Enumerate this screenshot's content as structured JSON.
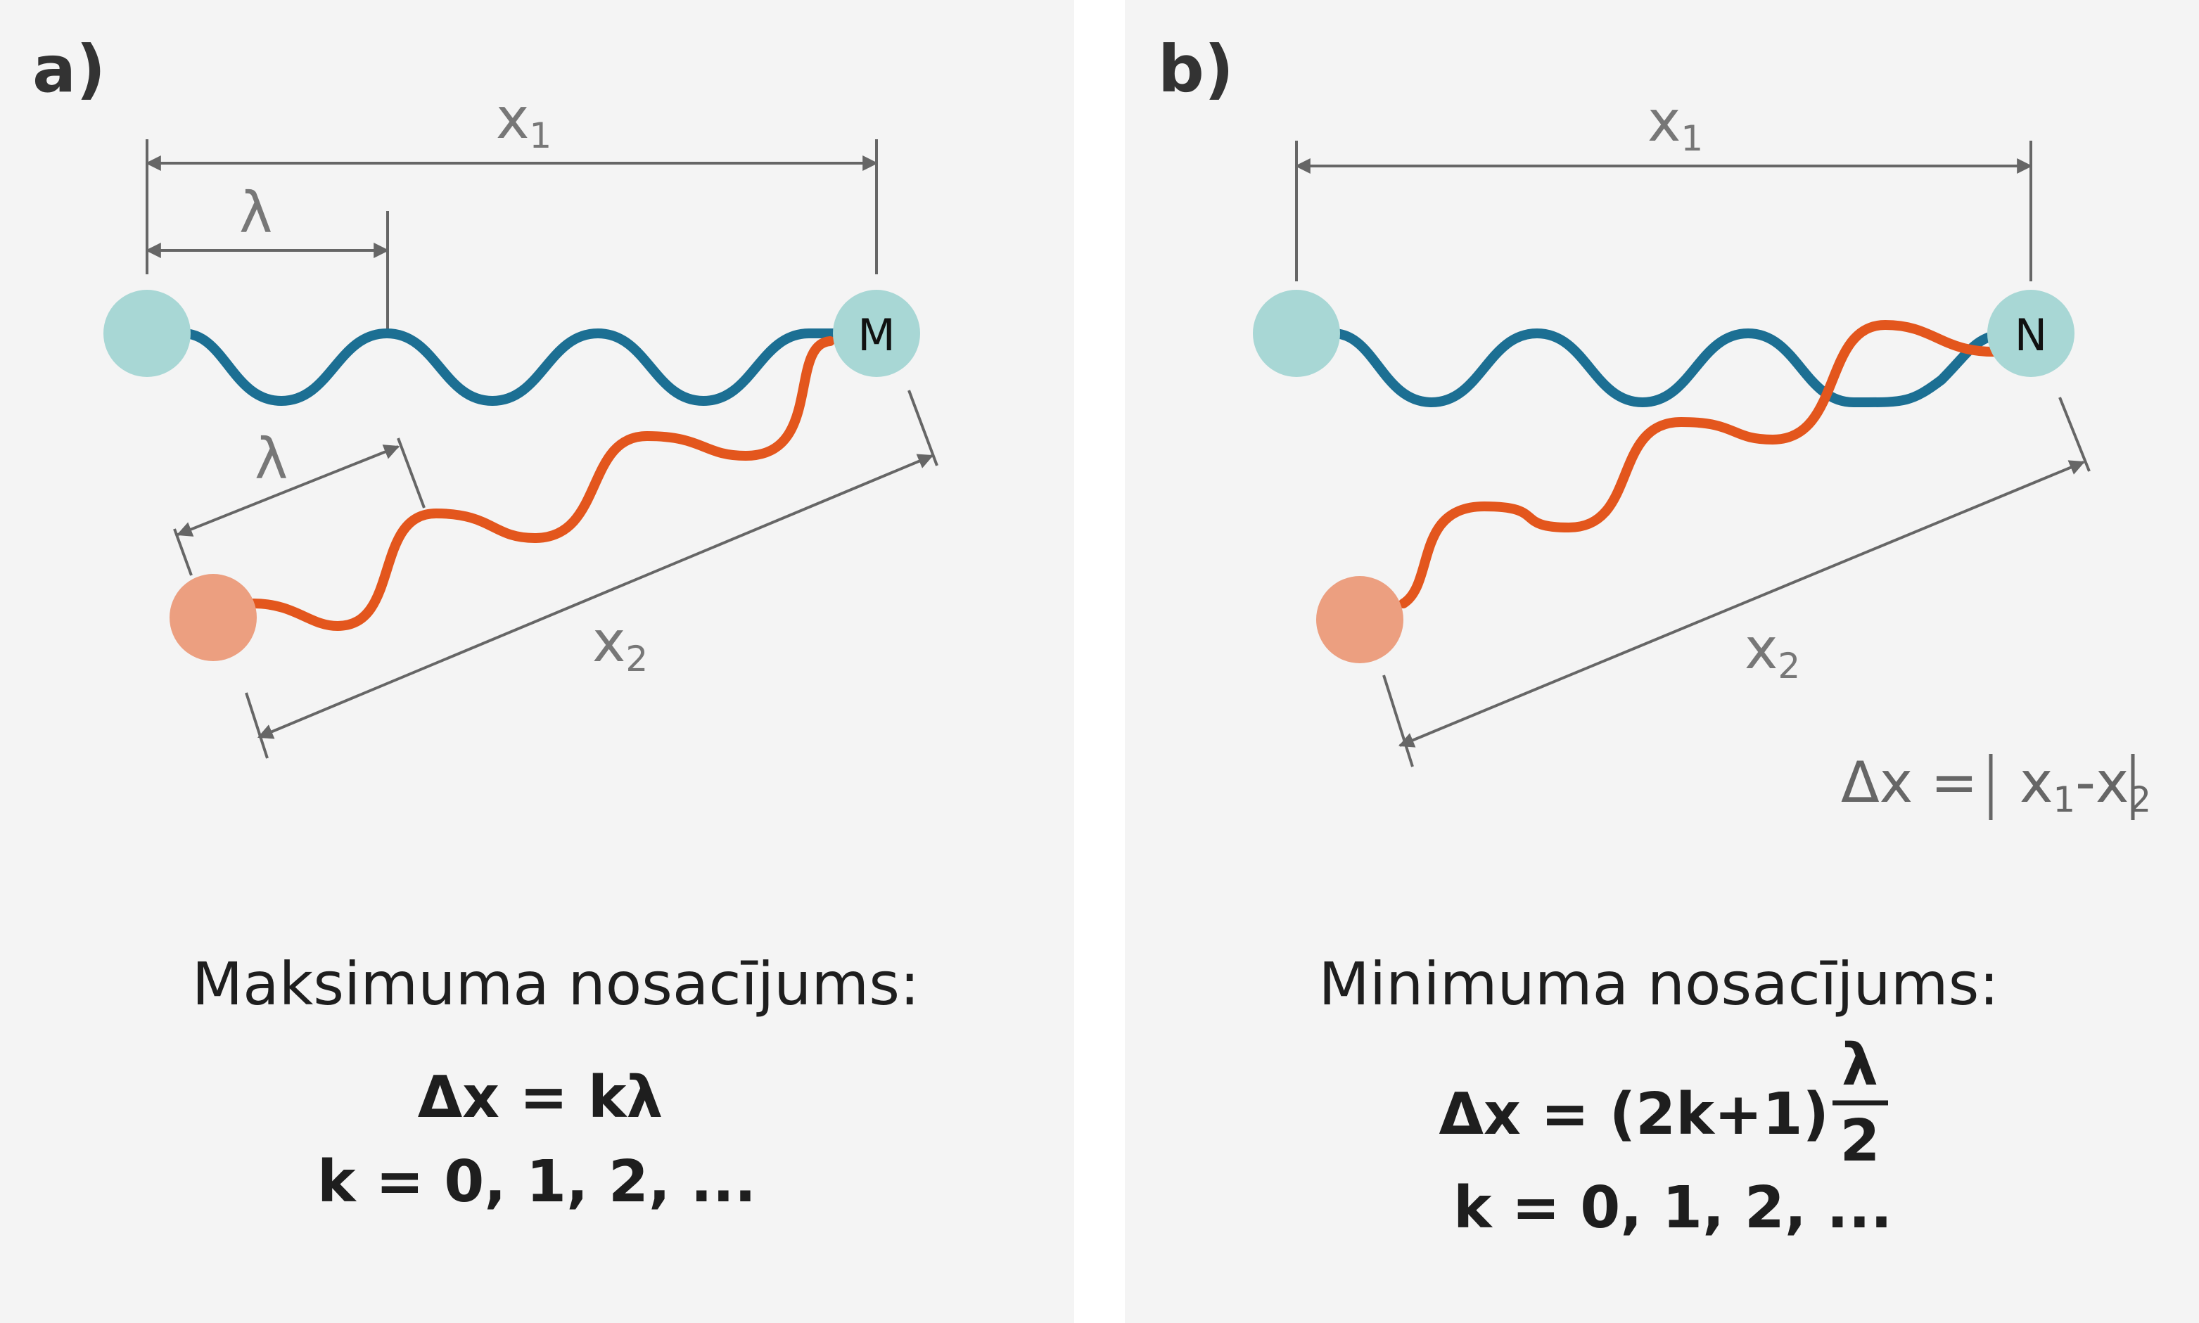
{
  "colors": {
    "panel": "#f4f4f4",
    "dim": "#666666",
    "wave1": "#1c6f93",
    "wave2": "#e3561d",
    "source1": "#a8d7d5",
    "source2": "#ec9f80",
    "text": "#1e1e1e"
  },
  "panel_a": {
    "tag": "a)",
    "lambda_top": "λ",
    "lambda_bottom": "λ",
    "x1": "x",
    "x1_sub": "1",
    "x2": "x",
    "x2_sub": "2",
    "point": "M",
    "condition_title": "Maksimuma nosacījums:",
    "formula": "Δx = kλ",
    "k_values": "k = 0, 1, 2, ..."
  },
  "panel_b": {
    "tag": "b)",
    "x1": "x",
    "x1_sub": "1",
    "x2": "x",
    "x2_sub": "2",
    "point": "N",
    "delta_lhs": "Δx = ",
    "delta_x": "x",
    "delta_sub1": "1",
    "delta_minus": "-x",
    "delta_sub2": "2",
    "condition_title": "Minimuma nosacījums:",
    "formula_lhs": "Δx = (2k+1)",
    "frac_num": "λ",
    "frac_den": "2",
    "k_values": "k = 0, 1, 2, ..."
  }
}
